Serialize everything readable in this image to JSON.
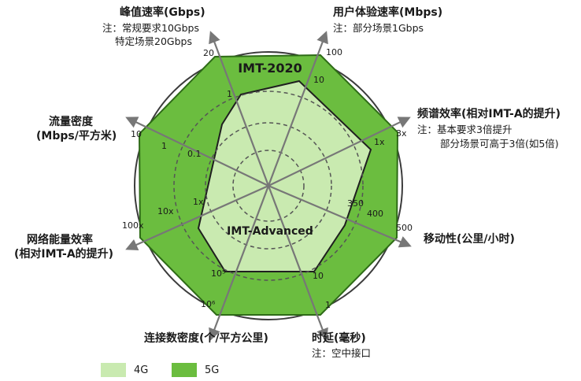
{
  "colors": {
    "g4_fill": "#c9eab0",
    "g5_fill": "#6bbd3f",
    "ring": "#3c3c3c",
    "axis": "#777777"
  },
  "title_5g": "IMT-2020",
  "title_4g": "IMT-Advanced",
  "axes": {
    "peak": {
      "title": "峰值速率(Gbps)",
      "note1": "注：常规要求10Gbps",
      "note2": "特定场景20Gbps",
      "val_5g": "20",
      "val_4g": "1"
    },
    "user": {
      "title": "用户体验速率(Mbps)",
      "note1": "注：部分场景1Gbps",
      "val_5g": "100",
      "val_4g": "10"
    },
    "spectrum": {
      "title": "频谱效率(相对IMT-A的提升)",
      "note1": "注：基本要求3倍提升",
      "note2": "部分场景可高于3倍(如5倍)",
      "val_5g": "3x",
      "val_4g": "1x"
    },
    "mobility": {
      "title": "移动性(公里/小时)",
      "val_5g": "500",
      "val_mid": "400",
      "val_4g": "350"
    },
    "latency": {
      "title": "时延(毫秒)",
      "note1": "注：空中接口",
      "val_5g": "1",
      "val_4g": "10"
    },
    "density": {
      "title": "连接数密度(个/平方公里)",
      "val_5g": "10⁶",
      "val_4g": "10⁵"
    },
    "energy": {
      "title1": "网络能量效率",
      "title2": "(相对IMT-A的提升)",
      "val_5g": "100x",
      "val_4g": "10x",
      "val_inner": "1x"
    },
    "traffic": {
      "title1": "流量密度",
      "title2": "(Mbps/平方米)",
      "val_5g": "10",
      "val_4g": "1",
      "val_inner": "0.1"
    }
  },
  "legend": {
    "g4": "4G",
    "g5": "5G"
  }
}
